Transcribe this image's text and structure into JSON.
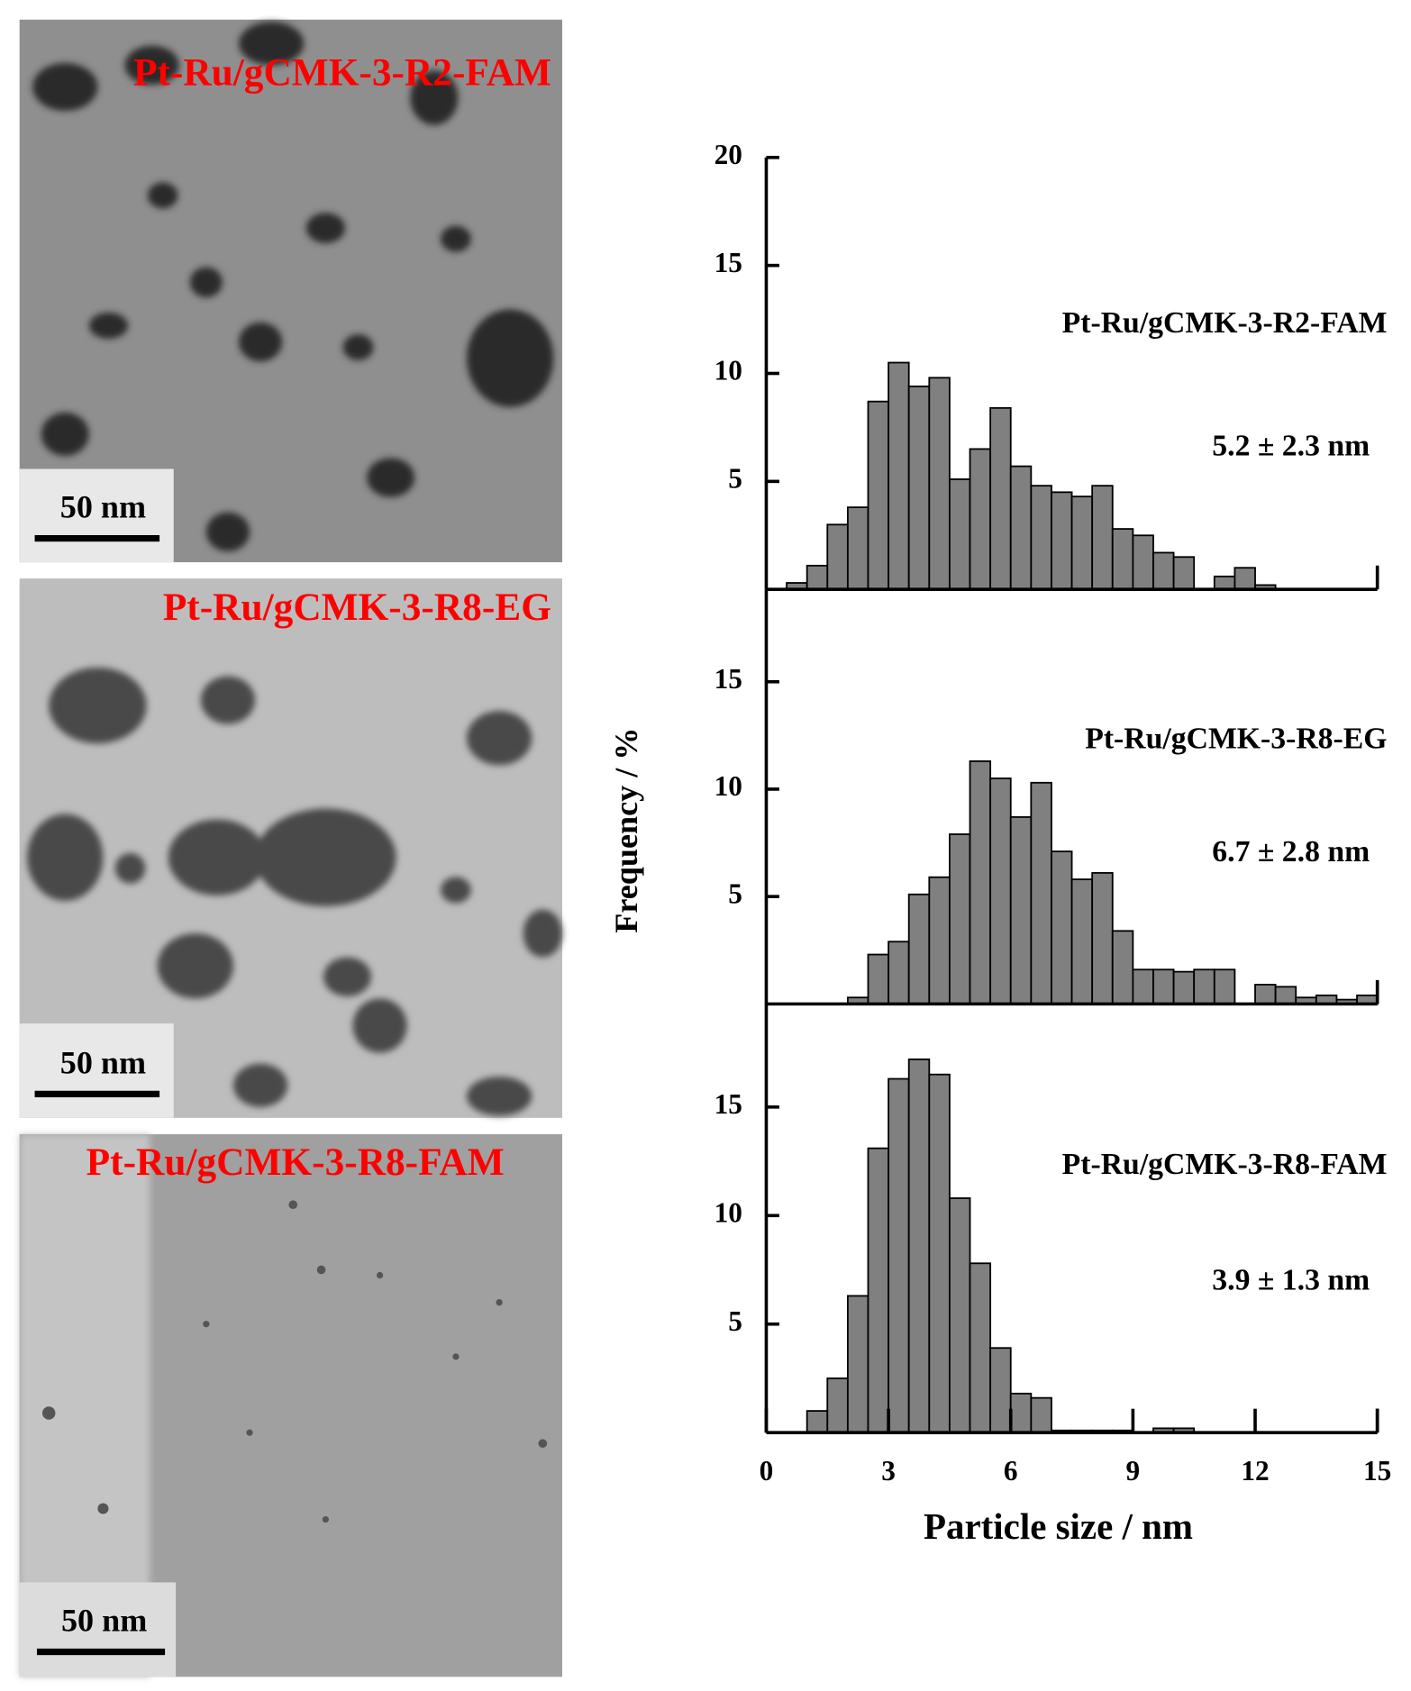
{
  "micrographs": [
    {
      "label": "Pt-Ru/gCMK-3-R2-FAM",
      "scale_bar": "50 nm"
    },
    {
      "label": "Pt-Ru/gCMK-3-R8-EG",
      "scale_bar": "50 nm"
    },
    {
      "label": "Pt-Ru/gCMK-3-R8-FAM",
      "scale_bar": "50 nm"
    }
  ],
  "axes": {
    "y_label": "Frequency / %",
    "x_label": "Particle size / nm"
  },
  "chart_data": [
    {
      "type": "histogram",
      "label": "Pt-Ru/gCMK-3-R2-FAM",
      "annotation": "5.2 ± 2.3 nm",
      "color": "#808080",
      "bins": [
        0.5,
        1,
        1.5,
        2,
        2.5,
        3,
        3.5,
        4,
        4.5,
        5,
        5.5,
        6,
        6.5,
        7,
        7.5,
        8,
        8.5,
        9,
        9.5,
        10,
        10.5,
        11,
        11.5,
        12,
        12.5
      ],
      "values": [
        0.3,
        1.1,
        3.0,
        3.8,
        8.7,
        10.5,
        9.4,
        9.8,
        5.1,
        6.5,
        8.4,
        5.7,
        4.8,
        4.5,
        4.3,
        4.8,
        2.8,
        2.5,
        1.7,
        1.5,
        0,
        0.6,
        1.0,
        0.2
      ],
      "xlim": [
        0,
        15
      ],
      "ylim": [
        0,
        20
      ],
      "yticks": [
        5,
        10,
        15,
        20
      ]
    },
    {
      "type": "histogram",
      "label": "Pt-Ru/gCMK-3-R8-EG",
      "annotation": "6.7 ± 2.8 nm",
      "color": "#808080",
      "bins": [
        2,
        2.5,
        3,
        3.5,
        4,
        4.5,
        5,
        5.5,
        6,
        6.5,
        7,
        7.5,
        8,
        8.5,
        9,
        9.5,
        10,
        10.5,
        11,
        11.5,
        12,
        12.5,
        13,
        13.5,
        14,
        14.5,
        15
      ],
      "values": [
        0.3,
        2.3,
        2.9,
        5.1,
        5.9,
        7.9,
        11.3,
        10.5,
        8.7,
        10.3,
        7.1,
        5.8,
        6.1,
        3.4,
        1.6,
        1.6,
        1.5,
        1.6,
        1.6,
        0,
        0.9,
        0.8,
        0.3,
        0.4,
        0.2,
        0.4
      ],
      "xlim": [
        0,
        15
      ],
      "ylim": [
        0,
        19.3
      ],
      "yticks": [
        5,
        10,
        15
      ]
    },
    {
      "type": "histogram",
      "label": "Pt-Ru/gCMK-3-R8-FAM",
      "annotation": "3.9 ± 1.3 nm",
      "color": "#808080",
      "bins": [
        1,
        1.5,
        2,
        2.5,
        3,
        3.5,
        4,
        4.5,
        5,
        5.5,
        6,
        6.5,
        7,
        7.5,
        8,
        8.5,
        9,
        9.5,
        10,
        10.5
      ],
      "values": [
        1.0,
        2.5,
        6.3,
        13.1,
        16.3,
        17.2,
        16.5,
        10.8,
        7.8,
        3.9,
        1.8,
        1.6,
        0.1,
        0.1,
        0.1,
        0.1,
        0,
        0.2,
        0.2
      ],
      "xlim": [
        0,
        15
      ],
      "ylim": [
        0,
        19.75
      ],
      "yticks": [
        5,
        10,
        15
      ],
      "xticks": [
        0,
        3,
        6,
        9,
        12,
        15
      ]
    }
  ]
}
